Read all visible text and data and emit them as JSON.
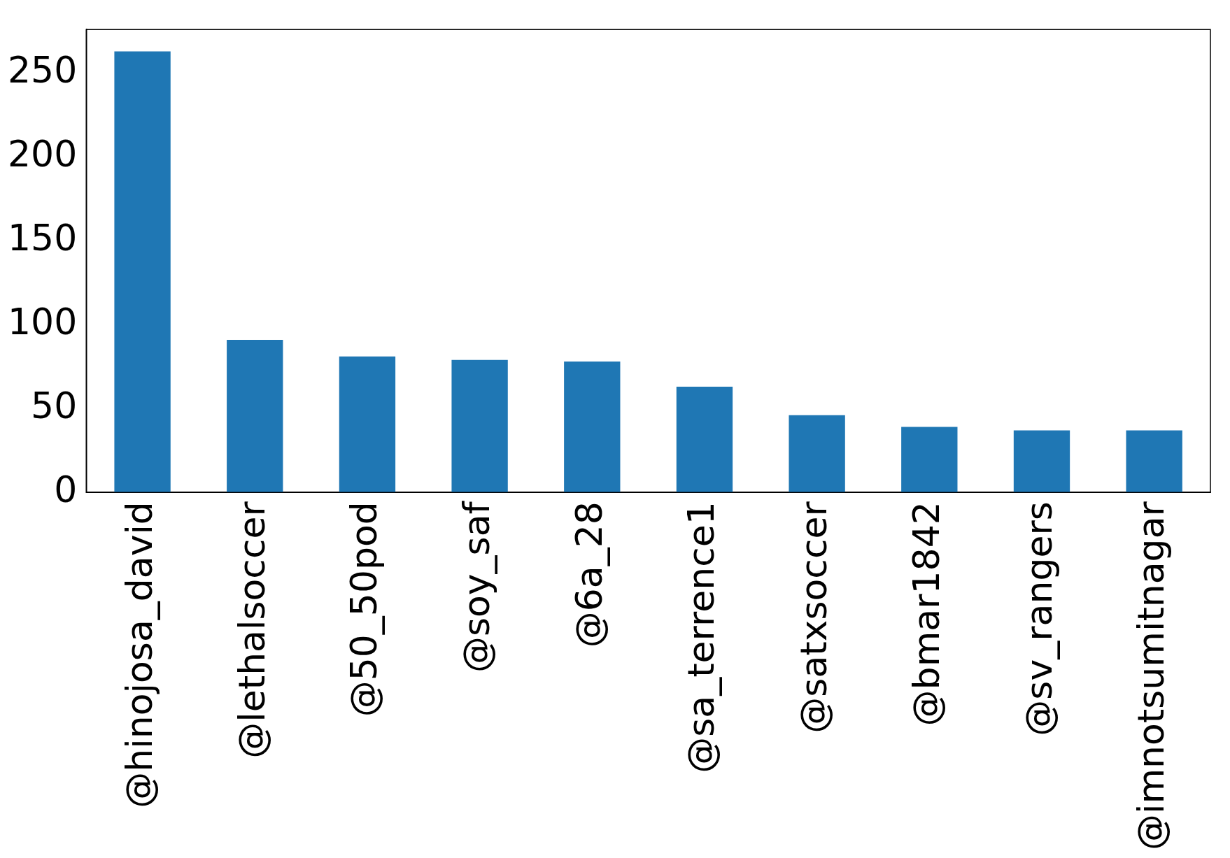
{
  "chart_data": {
    "type": "bar",
    "categories": [
      "@hinojosa_david",
      "@lethalsoccer",
      "@50_50pod",
      "@soy_saf",
      "@6a_28",
      "@sa_terrence1",
      "@satxsoccer",
      "@bmar1842",
      "@sv_rangers",
      "@imnotsumitnagar"
    ],
    "values": [
      263,
      91,
      81,
      79,
      78,
      63,
      46,
      39,
      37,
      37
    ],
    "color": "#1f77b4",
    "ylim": [
      0,
      276
    ],
    "yticks": [
      0,
      50,
      100,
      150,
      200,
      250
    ],
    "grid": false,
    "legend": false
  }
}
